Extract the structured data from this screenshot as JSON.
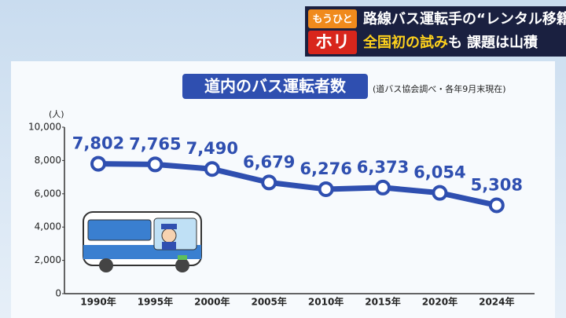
{
  "banner": {
    "tag_top": "もうひと",
    "tag_bottom": "ホリ",
    "line1": "路線バス運転手の“レンタル移籍”",
    "line2_highlight": "全国初の試み",
    "line2_mid": "も",
    "line2_end": "課題は山積"
  },
  "chart_data": {
    "type": "line",
    "title": "道内のバス運転者数",
    "subtitle": "(道バス協会調べ・各年9月末現在)",
    "y_unit": "(人)",
    "categories": [
      "1990年",
      "1995年",
      "2000年",
      "2005年",
      "2010年",
      "2015年",
      "2020年",
      "2024年"
    ],
    "values": [
      7802,
      7765,
      7490,
      6679,
      6276,
      6373,
      6054,
      5308
    ],
    "value_labels": [
      "7,802",
      "7,765",
      "7,490",
      "6,679",
      "6,276",
      "6,373",
      "6,054",
      "5,308"
    ],
    "color": "#2f4fb0",
    "ylim": [
      0,
      10000
    ],
    "yticks": [
      0,
      {
        "value": 2000,
        "label": "2,000"
      },
      {
        "value": 4000,
        "label": "4,000"
      },
      {
        "value": 6000,
        "label": "6,000"
      },
      {
        "value": 8000,
        "label": "8,000"
      },
      {
        "value": 10000,
        "label": "10,000"
      }
    ]
  }
}
